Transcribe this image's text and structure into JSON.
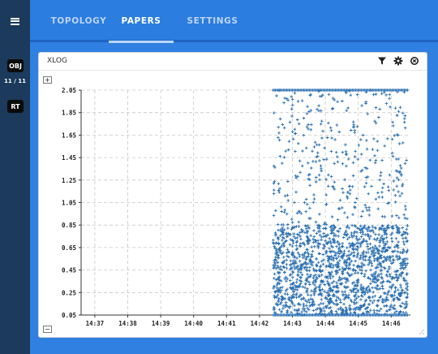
{
  "sidebar": {
    "menu_icon": "hamburger-menu-icon",
    "obj_badge": "OBJ",
    "obj_count": "11 / 11",
    "rt_badge": "RT"
  },
  "tabs": [
    {
      "label": "TOPOLOGY",
      "active": false
    },
    {
      "label": "PAPERS",
      "active": true
    },
    {
      "label": "SETTINGS",
      "active": false
    }
  ],
  "panel": {
    "title": "XLOG",
    "tools": [
      "filter-icon",
      "gear-icon",
      "close-circle-icon"
    ],
    "zoom_in_label": "+",
    "zoom_out_label": "−"
  },
  "colors": {
    "sidebar": "#1b3a5c",
    "topbar": "#2b7de0",
    "background": "#2f80e0",
    "point": "#2a6fb0"
  },
  "chart_data": {
    "type": "scatter",
    "title": "",
    "xlabel": "",
    "ylabel": "",
    "y_ticks": [
      "2.05",
      "1.85",
      "1.65",
      "1.45",
      "1.25",
      "1.05",
      "0.85",
      "0.65",
      "0.45",
      "0.25",
      "0.05"
    ],
    "x_ticks": [
      "14:37",
      "14:38",
      "14:39",
      "14:40",
      "14:41",
      "14:42",
      "14:43",
      "14:44",
      "14:45",
      "14:46"
    ],
    "ylim": [
      0.05,
      2.05
    ],
    "xlim": [
      "14:36:35",
      "14:46:35"
    ],
    "grid": true,
    "marker": "+",
    "data_start": "14:42:25",
    "data_end": "14:46:30",
    "dense_band": [
      0.05,
      0.85
    ],
    "sparse_band": [
      0.85,
      2.05
    ],
    "cap_line": 2.05,
    "floor_line": 0.05
  }
}
